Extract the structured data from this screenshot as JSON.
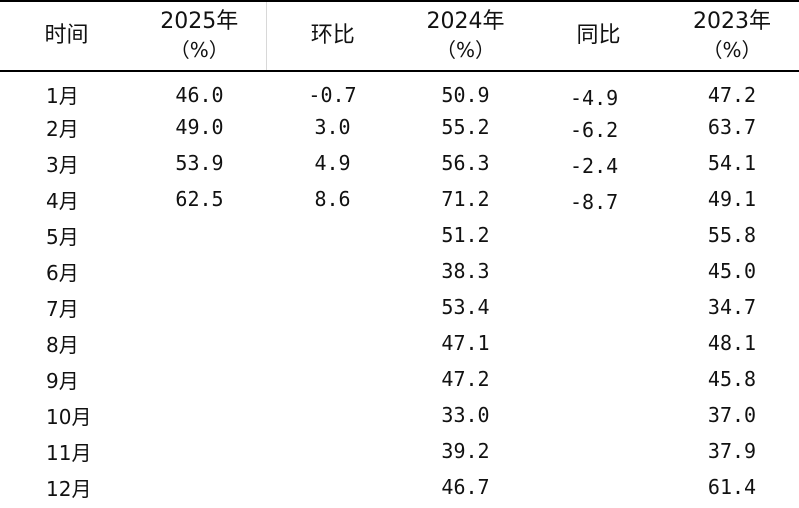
{
  "header": {
    "month": "时间",
    "y2025": "2025年",
    "y2025_unit": "（%）",
    "mom": "环比",
    "y2024": "2024年",
    "y2024_unit": "（%）",
    "yoy": "同比",
    "y2023": "2023年",
    "y2023_unit": "（%）"
  },
  "rows": [
    {
      "month": "1月",
      "y2025": "46.0",
      "mom": "-0.7",
      "y2024": "50.9",
      "yoy": "-4.9",
      "y2023": "47.2"
    },
    {
      "month": "2月",
      "y2025": "49.0",
      "mom": "3.0",
      "y2024": "55.2",
      "yoy": "-6.2",
      "y2023": "63.7"
    },
    {
      "month": "3月",
      "y2025": "53.9",
      "mom": "4.9",
      "y2024": "56.3",
      "yoy": "-2.4",
      "y2023": "54.1"
    },
    {
      "month": "4月",
      "y2025": "62.5",
      "mom": "8.6",
      "y2024": "71.2",
      "yoy": "-8.7",
      "y2023": "49.1"
    },
    {
      "month": "5月",
      "y2025": "",
      "mom": "",
      "y2024": "51.2",
      "yoy": "",
      "y2023": "55.8"
    },
    {
      "month": "6月",
      "y2025": "",
      "mom": "",
      "y2024": "38.3",
      "yoy": "",
      "y2023": "45.0"
    },
    {
      "month": "7月",
      "y2025": "",
      "mom": "",
      "y2024": "53.4",
      "yoy": "",
      "y2023": "34.7"
    },
    {
      "month": "8月",
      "y2025": "",
      "mom": "",
      "y2024": "47.1",
      "yoy": "",
      "y2023": "48.1"
    },
    {
      "month": "9月",
      "y2025": "",
      "mom": "",
      "y2024": "47.2",
      "yoy": "",
      "y2023": "45.8"
    },
    {
      "month": "10月",
      "y2025": "",
      "mom": "",
      "y2024": "33.0",
      "yoy": "",
      "y2023": "37.0"
    },
    {
      "month": "11月",
      "y2025": "",
      "mom": "",
      "y2024": "39.2",
      "yoy": "",
      "y2023": "37.9"
    },
    {
      "month": "12月",
      "y2025": "",
      "mom": "",
      "y2024": "46.7",
      "yoy": "",
      "y2023": "61.4"
    }
  ]
}
